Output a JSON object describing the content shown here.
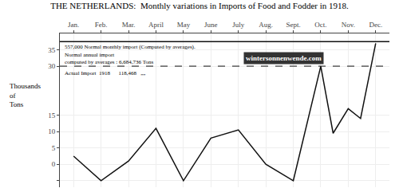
{
  "chart_data": {
    "type": "line",
    "title": "THE NETHERLANDS:  Monthly variations in Imports of Food and Fodder in 1918.",
    "ylabel": [
      "Thousands",
      "of",
      "Tons"
    ],
    "x": [
      0,
      1,
      2,
      3,
      4,
      5,
      6,
      7,
      8,
      9,
      9.45,
      10,
      10.45,
      11
    ],
    "values": [
      2.5,
      -5.0,
      1.0,
      11.0,
      -5.0,
      8.0,
      10.5,
      0.0,
      -5.0,
      30.0,
      9.5,
      17.0,
      14.0,
      37.0
    ],
    "color": "#111111",
    "reference_lines": [
      {
        "value": 37.5,
        "line_style": "solid",
        "color": "#111111"
      },
      {
        "value": 30.0,
        "line_style": "dashed",
        "color": "#111111"
      }
    ],
    "annotations": [
      "557,000 Normal monthly import (Computed by averages).",
      "Normal annual import",
      "computed by averages : 6,684,736 Tons",
      "Actual Import  1918      118,468   „„"
    ],
    "watermark": "wintersonnenwende.com",
    "xlim": [
      -0.5,
      11.5
    ],
    "xticks": [
      {
        "value": 0,
        "label": "Jan."
      },
      {
        "value": 1,
        "label": "Feb."
      },
      {
        "value": 2,
        "label": "Mar."
      },
      {
        "value": 3,
        "label": "April"
      },
      {
        "value": 4,
        "label": "May"
      },
      {
        "value": 5,
        "label": "June"
      },
      {
        "value": 6,
        "label": "July"
      },
      {
        "value": 7,
        "label": "Aug."
      },
      {
        "value": 8,
        "label": "Sept."
      },
      {
        "value": 9,
        "label": "Oct."
      },
      {
        "value": 10,
        "label": "Nov."
      },
      {
        "value": 11,
        "label": "Dec."
      }
    ],
    "ylim": [
      -7,
      40
    ],
    "yticks": [
      {
        "value": -5,
        "label": null
      },
      0,
      5,
      10,
      15,
      30,
      35
    ],
    "grid": true
  }
}
